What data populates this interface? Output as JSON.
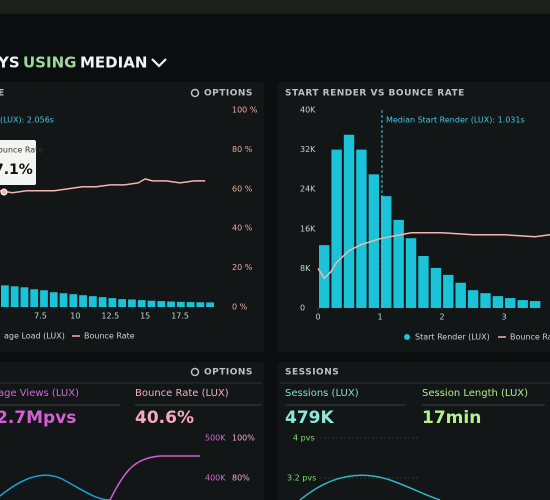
{
  "header": {
    "title": [
      "YS",
      "USING",
      "MEDIAN"
    ]
  },
  "chart_data": [
    {
      "type": "histogram",
      "title": "E",
      "options": "OPTIONS",
      "annotation": "(LUX): 2.056s",
      "tooltip": {
        "title": "ounce Rate",
        "value": "7.1%"
      },
      "bins": [
        4.6,
        5.3,
        6.0,
        6.7,
        7.4,
        8.1,
        8.8,
        9.5,
        10.2,
        10.9,
        11.6,
        12.3,
        13.0,
        13.7,
        14.4,
        15.1,
        15.8,
        16.5,
        17.2,
        17.9,
        18.6,
        19.3,
        20.0
      ],
      "series": [
        {
          "name": "age Load (LUX)",
          "color": "#1bc3d8",
          "values": [
            11,
            10.5,
            10,
            9,
            8.5,
            7.5,
            7,
            6.5,
            6,
            5.5,
            5,
            4.5,
            4,
            3.8,
            3.5,
            3.2,
            3,
            2.8,
            2.6,
            2.5,
            2.4,
            2.3
          ]
        },
        {
          "name": "Bounce Rate",
          "color": "#f2b5b0",
          "axis": "y2",
          "x": [
            4.6,
            5.5,
            6.5,
            7.5,
            8.5,
            9.5,
            10.5,
            11.5,
            12.5,
            13.5,
            14.5,
            15,
            15.5,
            16.5,
            17.5,
            18.5,
            19.3
          ],
          "values": [
            59,
            58,
            59,
            59,
            59,
            60,
            61,
            61,
            62,
            62,
            63,
            65,
            64,
            64,
            63,
            64,
            64
          ]
        }
      ],
      "xlim": [
        4.6,
        20.0
      ],
      "xticks": [
        7.5,
        10,
        12.5,
        15,
        17.5
      ],
      "ylim": [
        0,
        100
      ],
      "y2lim": [
        0,
        100
      ],
      "y2ticks": [
        {
          "value": 0,
          "label": "0 %"
        },
        {
          "value": 20,
          "label": "20 %"
        },
        {
          "value": 40,
          "label": "40 %"
        },
        {
          "value": 60,
          "label": "60 %"
        },
        {
          "value": 80,
          "label": "80 %"
        },
        {
          "value": 100,
          "label": "100 %"
        }
      ]
    },
    {
      "type": "histogram",
      "title": "START RENDER VS BOUNCE RATE",
      "annotation": {
        "label": "Median Start Render (LUX): 1.031s",
        "value": 1.031
      },
      "bins": [
        0,
        0.2,
        0.4,
        0.6,
        0.8,
        1.0,
        1.2,
        1.4,
        1.6,
        1.8,
        2.0,
        2.2,
        2.4,
        2.6,
        2.8,
        3.0,
        3.2,
        3.4,
        3.6
      ],
      "series": [
        {
          "name": "Start Render (LUX)",
          "color": "#1bc3d8",
          "values": [
            12700,
            32000,
            35000,
            32000,
            27000,
            22600,
            17800,
            14100,
            10500,
            8100,
            6700,
            5100,
            3600,
            3000,
            2400,
            2000,
            1600,
            1400
          ]
        },
        {
          "name": "Bounce Rate",
          "color": "#f2b5b0",
          "axis": "y2",
          "x": [
            0,
            0.1,
            0.2,
            0.3,
            0.5,
            0.7,
            1,
            1.5,
            2,
            2.5,
            3,
            3.5,
            3.74
          ],
          "values": [
            20,
            15,
            18,
            23,
            29,
            32,
            35,
            38,
            38,
            37,
            37,
            36,
            37
          ]
        }
      ],
      "xlim": [
        -0.13,
        3.74
      ],
      "xticks": [
        0,
        1,
        2,
        3
      ],
      "ylim": [
        0,
        40000
      ],
      "yticks": [
        0,
        {
          "value": 8000,
          "label": "8K"
        },
        {
          "value": 16000,
          "label": "16K"
        },
        {
          "value": 24000,
          "label": "24K"
        },
        {
          "value": 32000,
          "label": "32K"
        },
        {
          "value": 40000,
          "label": "40K"
        }
      ],
      "y2lim": [
        0,
        100
      ]
    }
  ],
  "panels": [
    {
      "title": "OPTIONS",
      "metrics": [
        {
          "label": "age Views (LUX)",
          "value": "2.7Mpvs"
        },
        {
          "label": "Bounce Rate (LUX)",
          "value": "40.6%"
        }
      ],
      "scale_labels": [
        "500K",
        "100%",
        "400K",
        "80%"
      ]
    },
    {
      "title": "SESSIONS",
      "metrics": [
        {
          "label": "Sessions (LUX)",
          "value": "479K"
        },
        {
          "label": "Session Length (LUX)",
          "value": "17min"
        }
      ],
      "scale_labels": [
        "4 pvs",
        "3.2 pvs"
      ]
    }
  ]
}
